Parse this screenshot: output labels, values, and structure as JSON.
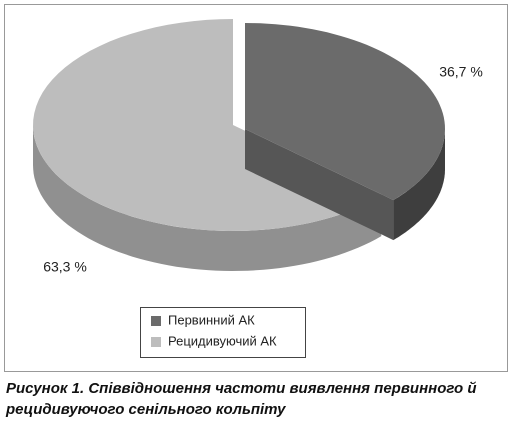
{
  "chart_data": {
    "type": "pie",
    "categories": [
      "Первинний АК",
      "Рецидивуючий АК"
    ],
    "values": [
      36.7,
      63.3
    ],
    "value_labels": [
      "36,7 %",
      "63,3 %"
    ],
    "colors": [
      "#6b6b6b",
      "#bdbdbd"
    ],
    "legend": "bottom",
    "caption": "Рисунок 1. Співвідношення частоти виявлення первинного й рецидивуючого сенільного кольпіту"
  }
}
